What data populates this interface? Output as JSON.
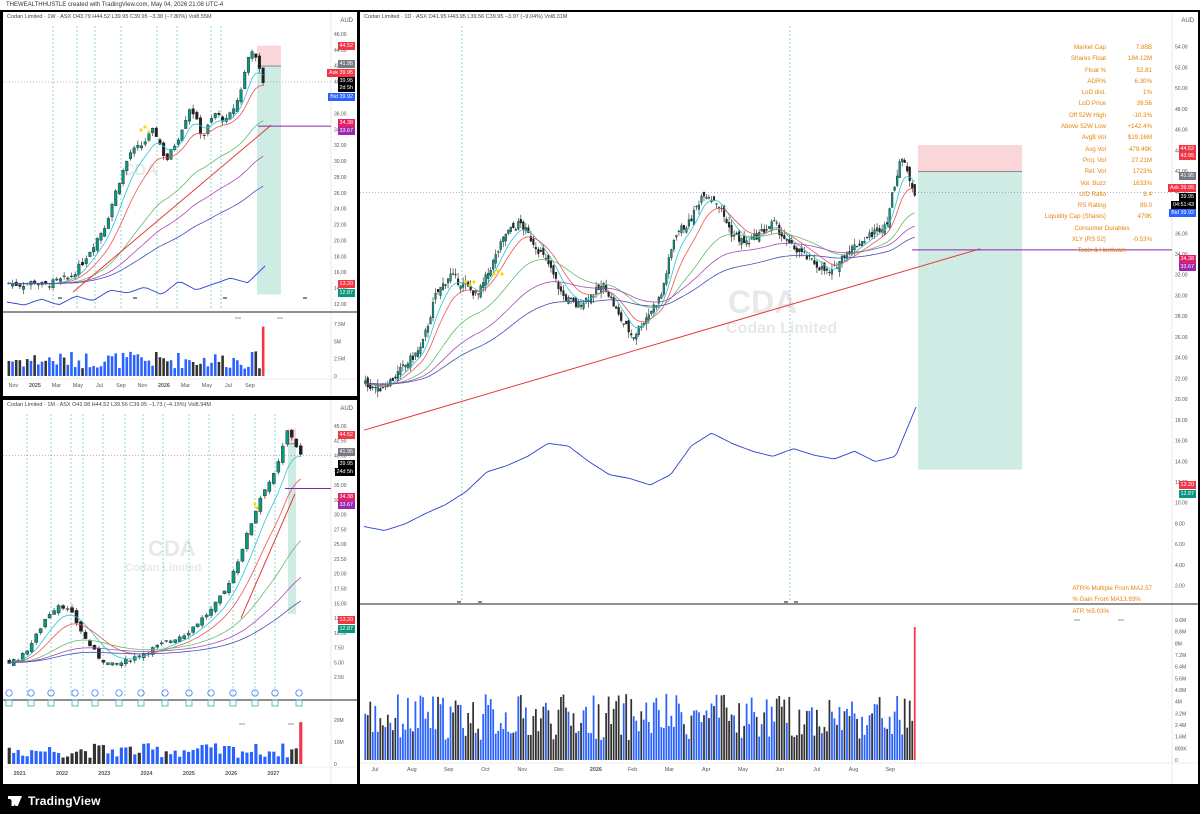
{
  "topbar": {
    "text": "THEWEALTHHUSTLE created with TradingView.com, May 04, 2026 21:08 UTC-4"
  },
  "footer": {
    "brand": "TradingView"
  },
  "weekly": {
    "header": "Codan Limited · 1W · ASX  O43.79 H44.52 L39.95 C39.95 −3.38 (−7.80%) Vol8.55M",
    "currency": "AUD",
    "watermark_ticker": "CDA",
    "watermark_name": "Codan Limited",
    "rs_label": "RS Rating",
    "vol_label": "AvgVol: 38.39M",
    "proj_label": "Proj RVol: 21.9x",
    "y_ticks": [
      "46.00",
      "44.00",
      "42.00",
      "40.00",
      "38.00",
      "36.00",
      "34.00",
      "32.00",
      "30.00",
      "28.00",
      "26.00",
      "24.00",
      "22.00",
      "20.00",
      "18.00",
      "16.00",
      "14.00",
      "12.00"
    ],
    "vol_ticks": [
      "7.5M",
      "5M",
      "2.5M",
      "0"
    ],
    "x_ticks": [
      "Nov",
      "2025",
      "Mar",
      "May",
      "Jul",
      "Sep",
      "Nov",
      "2026",
      "Mar",
      "May",
      "Jul",
      "Sep"
    ],
    "price_tags": [
      {
        "text": "44.52",
        "color": "#f23645"
      },
      {
        "text": "41.95",
        "color": "#787b86"
      },
      {
        "text": "Ask 39.95",
        "color": "#f23645"
      },
      {
        "text": "39.95",
        "color": "#000000"
      },
      {
        "text": "2d 5h",
        "color": "#000000"
      },
      {
        "text": "Bid 39.92",
        "color": "#2962ff"
      },
      {
        "text": "34.38",
        "color": "#e91e63"
      },
      {
        "text": "33.67",
        "color": "#9c27b0"
      },
      {
        "text": "13.20",
        "color": "#f23645"
      },
      {
        "text": "12.87",
        "color": "#089981"
      }
    ],
    "events": [
      "E",
      "E",
      "E",
      "E"
    ]
  },
  "monthly": {
    "header": "Codan Limited · 1M · ASX  O42.98 H44.52 L39.56 C39.95 −1.73 (−4.15%) Vol8.94M",
    "currency": "AUD",
    "watermark_ticker": "CDA",
    "watermark_name": "Codan Limited",
    "vol_label": "AvgVol: 132.02 M",
    "proj_label": "Proj RVol: 8.2x",
    "y_ticks": [
      "45.00",
      "42.50",
      "40.00",
      "37.50",
      "35.00",
      "32.50",
      "30.00",
      "27.50",
      "25.00",
      "22.50",
      "20.00",
      "17.50",
      "15.00",
      "12.50",
      "10.00",
      "7.50",
      "5.00",
      "2.50"
    ],
    "vol_ticks": [
      "20M",
      "10M",
      "0"
    ],
    "x_ticks": [
      "2021",
      "2022",
      "2023",
      "2024",
      "2025",
      "2026",
      "2027"
    ],
    "price_tags": [
      {
        "text": "44.52",
        "color": "#f23645"
      },
      {
        "text": "41.95",
        "color": "#787b86"
      },
      {
        "text": "39.95",
        "color": "#000000"
      },
      {
        "text": "24d 5h",
        "color": "#000000"
      },
      {
        "text": "34.38",
        "color": "#e91e63"
      },
      {
        "text": "33.67",
        "color": "#9c27b0"
      },
      {
        "text": "13.20",
        "color": "#f23645"
      },
      {
        "text": "12.87",
        "color": "#089981"
      }
    ]
  },
  "daily": {
    "header": "Codan Limited · 1D · ASX  O41.95 H43.95 L39.56 C39.95 −3.97 (−9.04%) Vol8.31M",
    "currency": "AUD",
    "watermark_ticker": "CDA",
    "watermark_name": "Codan Limited",
    "rs_label": "RS Rating",
    "rs_value": "89",
    "vol_label": "AvgVol: 16.96 M",
    "proj_label": "Proj RVol: 10.6x",
    "hvy_labels": [
      "HVY 58.2%",
      "HVY 56%",
      "HVY 185%"
    ],
    "y_ticks": [
      "54.00",
      "52.00",
      "50.00",
      "48.00",
      "46.00",
      "44.00",
      "42.00",
      "40.00",
      "38.00",
      "36.00",
      "34.00",
      "32.00",
      "30.00",
      "28.00",
      "26.00",
      "24.00",
      "22.00",
      "20.00",
      "18.00",
      "16.00",
      "14.00",
      "12.00",
      "10.00",
      "8.00",
      "6.00",
      "4.00",
      "2.00"
    ],
    "vol_ticks": [
      "9.6M",
      "8.8M",
      "8M",
      "7.2M",
      "6.4M",
      "5.6M",
      "4.8M",
      "4M",
      "3.2M",
      "2.4M",
      "1.6M",
      "800K",
      "0"
    ],
    "x_ticks": [
      "Jul",
      "Aug",
      "Sep",
      "Oct",
      "Nov",
      "Dec",
      "2026",
      "Feb",
      "Mar",
      "Apr",
      "May",
      "Jun",
      "Jul",
      "Aug",
      "Sep"
    ],
    "price_tags": [
      {
        "text": "44.52",
        "color": "#f23645"
      },
      {
        "text": "43.95",
        "color": "#f23645"
      },
      {
        "text": "41.95",
        "color": "#787b86"
      },
      {
        "text": "Ask 39.95",
        "color": "#f23645"
      },
      {
        "text": "39.95",
        "color": "#000000"
      },
      {
        "text": "04:51:43",
        "color": "#000000"
      },
      {
        "text": "Bid 39.92",
        "color": "#2962ff"
      },
      {
        "text": "34.38",
        "color": "#e91e63"
      },
      {
        "text": "33.67",
        "color": "#9c27b0"
      },
      {
        "text": "13.20",
        "color": "#f23645"
      },
      {
        "text": "12.87",
        "color": "#089981"
      }
    ],
    "events": [
      "E",
      "D",
      "E",
      "D"
    ],
    "stats": [
      {
        "label": "Market Cap",
        "value": "7.88B"
      },
      {
        "label": "Shares Float",
        "value": "184.12M"
      },
      {
        "label": "Float %",
        "value": "52.81"
      },
      {
        "label": "ADR%",
        "value": "6.30%"
      },
      {
        "label": "LoD dist.",
        "value": "1%"
      },
      {
        "label": "LoD Price",
        "value": "39.56"
      },
      {
        "label": "Off 52W High",
        "value": "-10.3%"
      },
      {
        "label": "Above 52W Low",
        "value": "+142.4%"
      },
      {
        "label": "Avg$ Vol",
        "value": "$19.16M"
      },
      {
        "label": "Avg Vol",
        "value": "479.49K"
      },
      {
        "label": "Proj. Vol",
        "value": "27.21M"
      },
      {
        "label": "Rel. Vol",
        "value": "1723%"
      },
      {
        "label": "Vol. Buzz",
        "value": "1633%"
      },
      {
        "label": "U/D Ratio",
        "value": "8.4"
      },
      {
        "label": "RS Rating",
        "value": "89.0"
      },
      {
        "label": "Liquidity Cap (Shares)",
        "value": "479K"
      }
    ],
    "sector": "Consumer Durables",
    "etf": {
      "label": "XLY (RS 52)",
      "value": "-0.53%"
    },
    "industry": "Tools & Hardware",
    "stats2": [
      {
        "label": "ATR% Multiple From MA",
        "value": "2.57"
      },
      {
        "label": "% Gain From MA",
        "value": "13.93%"
      },
      {
        "label": "ATR %",
        "value": "5.03%"
      }
    ]
  },
  "colors": {
    "up": "#089981",
    "down": "#f23645",
    "rs": "#2a3fd4",
    "trend": "#e53935",
    "target": "#c2185b"
  },
  "chart_data": [
    {
      "type": "line",
      "title": "Codan Limited · 1D · ASX",
      "series": [
        {
          "values": [
            22,
            21,
            24,
            26,
            30,
            31,
            35,
            36,
            34,
            33,
            31,
            30,
            31,
            33,
            40,
            41,
            38,
            37,
            36,
            33,
            37,
            38,
            36,
            35,
            40,
            43.9,
            39.95
          ]
        }
      ],
      "ylim": [
        2,
        55
      ]
    },
    {
      "type": "line",
      "title": "Codan Limited · 1W · ASX",
      "series": [
        {
          "values": [
            14.5,
            14.6,
            14.3,
            14.7,
            14.8,
            15.5,
            17,
            19,
            22,
            25,
            30,
            29,
            31,
            34,
            33,
            35,
            37,
            36,
            38.5,
            44.5,
            39.95
          ]
        }
      ],
      "ylim": [
        12,
        46
      ]
    },
    {
      "type": "line",
      "title": "Codan Limited · 1M · ASX",
      "series": [
        {
          "values": [
            5,
            6,
            10,
            14,
            15,
            12,
            8,
            5,
            4,
            5,
            6,
            7,
            8,
            9,
            10,
            12,
            13,
            15,
            20,
            25,
            32,
            36,
            38,
            44.5,
            39.95
          ]
        }
      ],
      "ylim": [
        0,
        46
      ]
    }
  ]
}
